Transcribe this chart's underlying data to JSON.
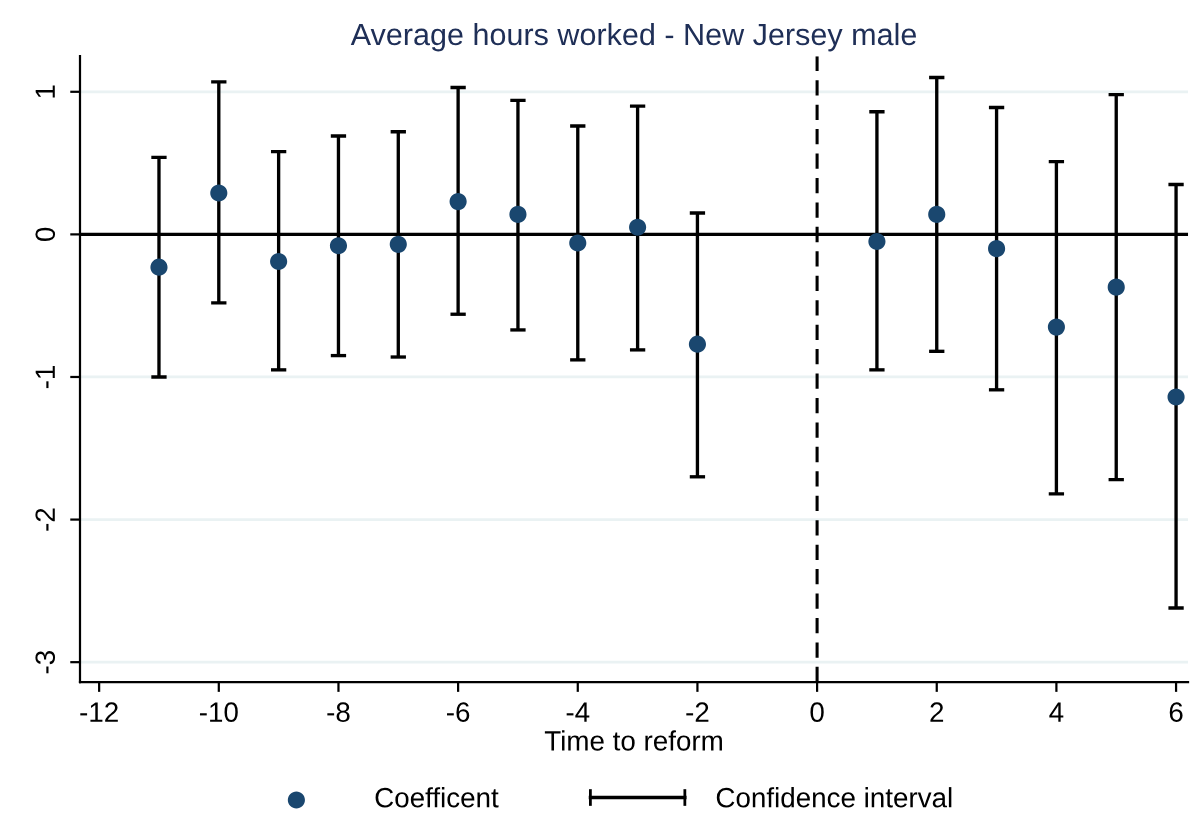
{
  "chart_data": {
    "type": "scatter",
    "title": "Average hours worked - New Jersey male",
    "xlabel": "Time to reform",
    "x": [
      -11,
      -10,
      -9,
      -8,
      -7,
      -6,
      -5,
      -4,
      -3,
      -2,
      1,
      2,
      3,
      4,
      5,
      6
    ],
    "series": [
      {
        "name": "Coefficent",
        "color": "#1a476f",
        "values": [
          -0.23,
          0.29,
          -0.19,
          -0.08,
          -0.07,
          0.23,
          0.14,
          -0.06,
          0.05,
          -0.77,
          -0.05,
          0.14,
          -0.1,
          -0.65,
          -0.37,
          -1.14
        ],
        "errors": [
          [
            -1.0,
            0.54
          ],
          [
            -0.48,
            1.07
          ],
          [
            -0.95,
            0.58
          ],
          [
            -0.85,
            0.69
          ],
          [
            -0.86,
            0.72
          ],
          [
            -0.56,
            1.03
          ],
          [
            -0.67,
            0.94
          ],
          [
            -0.88,
            0.76
          ],
          [
            -0.81,
            0.9
          ],
          [
            -1.7,
            0.15
          ],
          [
            -0.95,
            0.86
          ],
          [
            -0.82,
            1.1
          ],
          [
            -1.09,
            0.89
          ],
          [
            -1.82,
            0.51
          ],
          [
            -1.72,
            0.98
          ],
          [
            -2.62,
            0.35
          ]
        ]
      }
    ],
    "annotations": [
      "Confidence interval"
    ],
    "xlim": [
      -12.32,
      6.2
    ],
    "ylim": [
      -3.14,
      1.25
    ],
    "xticks": [
      -12,
      -10,
      -8,
      -6,
      -4,
      -2,
      0,
      2,
      4,
      6
    ],
    "yticks": [
      -3,
      -2,
      -1,
      0,
      1
    ],
    "ref_lines": [
      {
        "axis": "y",
        "value": 0,
        "color": "#000000",
        "line_style": "solid"
      },
      {
        "axis": "x",
        "value": 0,
        "color": "#000000",
        "line_style": "dashed"
      }
    ],
    "grid": "y",
    "legend": "bottom",
    "marker": "circle"
  }
}
